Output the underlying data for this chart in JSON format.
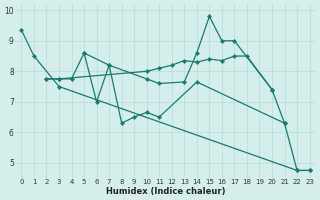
{
  "xlabel": "Humidex (Indice chaleur)",
  "ylabel": "",
  "bg_color": "#d4eeeb",
  "line_color": "#1a7a6e",
  "grid_color": "#b8dbd8",
  "xlim": [
    -0.5,
    23.5
  ],
  "ylim": [
    4.5,
    10.2
  ],
  "yticks": [
    5,
    6,
    7,
    8,
    9,
    10
  ],
  "xticks": [
    0,
    1,
    2,
    3,
    4,
    5,
    6,
    7,
    8,
    9,
    10,
    11,
    12,
    13,
    14,
    15,
    16,
    17,
    18,
    19,
    20,
    21,
    22,
    23
  ],
  "series": [
    {
      "x": [
        0,
        1,
        3,
        22,
        23
      ],
      "y": [
        9.35,
        8.5,
        7.5,
        4.75,
        4.75
      ]
    },
    {
      "x": [
        2,
        3,
        4,
        5,
        6,
        7,
        8,
        9,
        10,
        11,
        14,
        21
      ],
      "y": [
        7.75,
        7.75,
        7.75,
        8.6,
        7.0,
        8.2,
        6.3,
        6.5,
        6.65,
        6.5,
        7.65,
        6.3
      ]
    },
    {
      "x": [
        2,
        3,
        10,
        11,
        12,
        13,
        14,
        15,
        16,
        17,
        18,
        20
      ],
      "y": [
        7.75,
        7.75,
        8.0,
        8.1,
        8.2,
        8.35,
        8.3,
        8.4,
        8.35,
        8.5,
        8.5,
        7.4
      ]
    },
    {
      "x": [
        5,
        7,
        10,
        11,
        13,
        14,
        15,
        16,
        17,
        20,
        21,
        22,
        23
      ],
      "y": [
        8.6,
        8.2,
        7.75,
        7.6,
        7.65,
        8.6,
        9.8,
        9.0,
        9.0,
        7.4,
        6.3,
        4.75,
        4.75
      ]
    }
  ]
}
